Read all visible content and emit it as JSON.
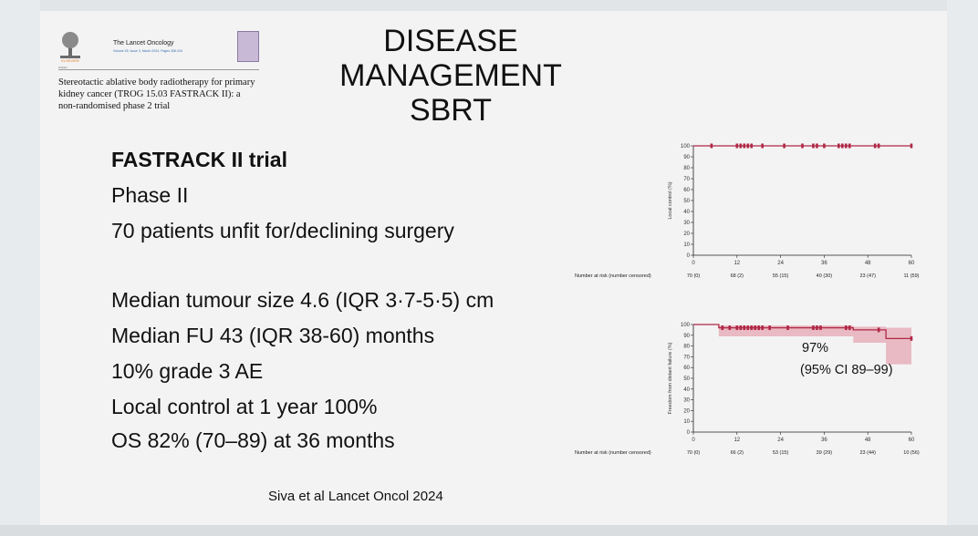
{
  "journal": {
    "publisher_logo": "elsevier-tree-logo",
    "publisher_name": "ELSEVIER",
    "name": "The Lancet Oncology",
    "issue": "Volume 25, Issue 3, March 2024, Pages 308-316",
    "article_type": "Articles",
    "article_title": "Stereotactic ablative body radiotherapy for primary kidney cancer (TROG 15.03 FASTRACK II): a non-randomised phase 2 trial"
  },
  "slide": {
    "title_line1": "DISEASE MANAGEMENT",
    "title_line2": "SBRT",
    "bullets": [
      "FASTRACK II trial",
      "Phase II",
      "70 patients unfit for/declining surgery",
      "Median tumour size 4.6 (IQR 3·7-5·5) cm",
      "Median FU 43 (IQR 38-60) months",
      "10% grade 3 AE",
      "Local control at 1 year 100%",
      "OS 82% (70–89) at 36 months"
    ],
    "citation": "Siva et al Lancet Oncol 2024"
  },
  "colors": {
    "curve": "#b02845",
    "ci_band": "#e6a7b3",
    "axis": "#222222"
  },
  "chart_data": [
    {
      "type": "line",
      "ylabel": "Local control (%)",
      "ylim": [
        0,
        100
      ],
      "yticks": [
        0,
        10,
        20,
        30,
        40,
        50,
        60,
        70,
        80,
        90,
        100
      ],
      "xlim": [
        0,
        60
      ],
      "xticks": [
        0,
        12,
        24,
        36,
        48,
        60
      ],
      "series": [
        {
          "x": [
            0,
            60
          ],
          "y": [
            100,
            100
          ]
        }
      ],
      "censor_marks": [
        5,
        12,
        13,
        14,
        15,
        16,
        19,
        25,
        30,
        33,
        34,
        36,
        40,
        41,
        42,
        43,
        50,
        51,
        60
      ],
      "risk_table_label": "Number at risk (number censored)",
      "risk_table": [
        "70 (0)",
        "68 (2)",
        "55 (15)",
        "40 (30)",
        "23 (47)",
        "11 (59)"
      ]
    },
    {
      "type": "line",
      "ylabel": "Freedom from distant failure (%)",
      "ylim": [
        0,
        100
      ],
      "yticks": [
        0,
        10,
        20,
        30,
        40,
        50,
        60,
        70,
        80,
        90,
        100
      ],
      "xlim": [
        0,
        60
      ],
      "xticks": [
        0,
        12,
        24,
        36,
        48,
        60
      ],
      "series": [
        {
          "x": [
            0,
            7,
            44,
            53,
            60
          ],
          "y": [
            100,
            97,
            95,
            87,
            87
          ]
        }
      ],
      "ci_band": {
        "x": [
          0,
          7,
          44,
          53,
          60
        ],
        "lower": [
          100,
          89,
          83,
          63,
          63
        ],
        "upper": [
          100,
          99,
          98,
          97,
          97
        ]
      },
      "censor_marks": [
        8,
        10,
        12,
        13,
        14,
        15,
        16,
        17,
        18,
        19,
        21,
        26,
        33,
        34,
        35,
        42,
        43,
        51,
        60
      ],
      "annotation": [
        "97%",
        "(95% CI 89–99)"
      ],
      "risk_table_label": "Number at risk (number censored)",
      "risk_table": [
        "70 (0)",
        "66 (2)",
        "53 (15)",
        "39 (29)",
        "23 (44)",
        "10 (56)"
      ]
    }
  ]
}
